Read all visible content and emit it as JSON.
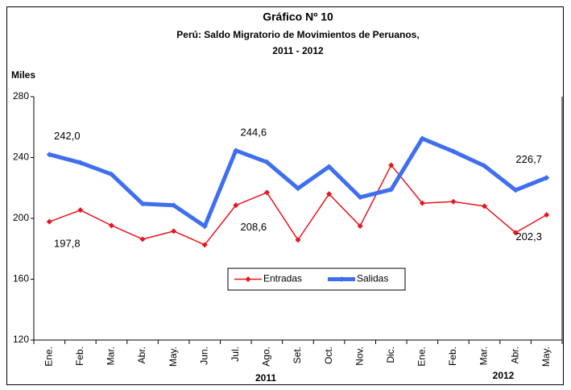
{
  "chart_data": {
    "type": "line",
    "title": "Gráfico Nº 10",
    "subtitle": [
      "Perú: Saldo Migratorio de Movimientos de Peruanos,",
      "2011 - 2012"
    ],
    "ylabel": "Miles",
    "categories": [
      "Ene.",
      "Feb.",
      "Mar.",
      "Abr.",
      "May.",
      "Jun.",
      "Jul.",
      "Ago.",
      "Set.",
      "Oct.",
      "Nov.",
      "Dic.",
      "Ene.",
      "Feb.",
      "Mar.",
      "Abr.",
      "May."
    ],
    "x_groups": [
      "2011",
      "2012"
    ],
    "series": [
      {
        "name": "Entradas",
        "color": "#e8141c",
        "values": [
          197.8,
          205.4,
          195.3,
          186.3,
          191.6,
          182.6,
          208.6,
          217,
          185.8,
          216,
          195,
          235,
          210,
          211,
          208,
          190.6,
          202.3
        ],
        "value_labels": [
          "197,8",
          null,
          null,
          null,
          null,
          null,
          "208,6",
          null,
          null,
          null,
          null,
          null,
          null,
          null,
          null,
          null,
          "202,3"
        ]
      },
      {
        "name": "Salidas",
        "color": "#3f6ff0",
        "values": [
          242.0,
          236.6,
          229,
          209.6,
          208.6,
          194.8,
          244.6,
          237,
          219.7,
          234,
          213.9,
          219,
          252.5,
          244,
          234.5,
          218.6,
          226.7
        ],
        "value_labels": [
          "242,0",
          null,
          null,
          null,
          null,
          null,
          "244,6",
          null,
          null,
          null,
          null,
          null,
          null,
          null,
          null,
          null,
          "226,7"
        ]
      }
    ],
    "ylim": [
      120,
      280
    ],
    "yticks": [
      120,
      160,
      200,
      240,
      280
    ],
    "grid": false,
    "legend": "center"
  }
}
